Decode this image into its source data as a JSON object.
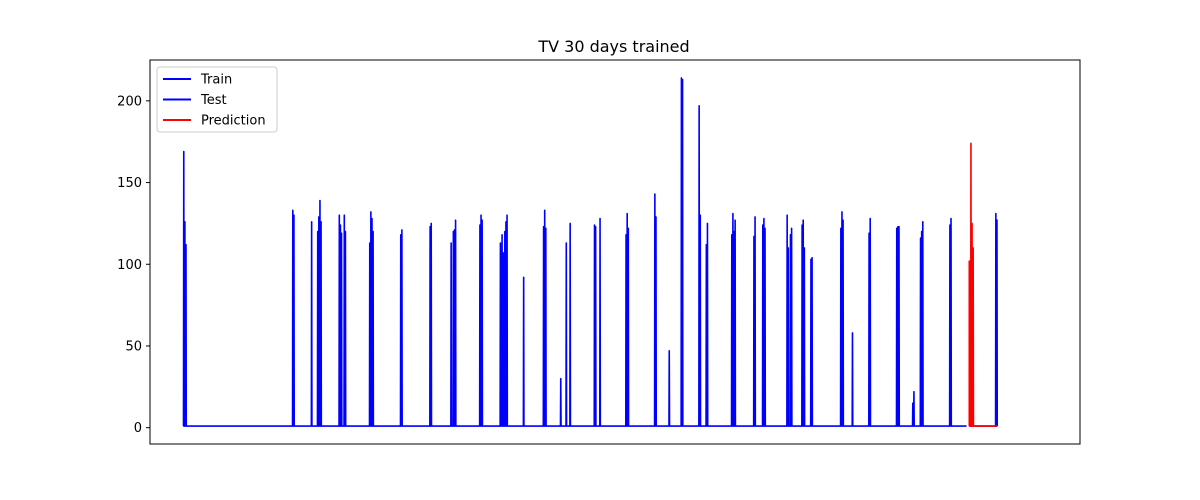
{
  "chart_data": {
    "type": "line",
    "title": "TV 30 days trained",
    "xlabel": "",
    "ylabel": "",
    "ylim": [
      -10,
      225
    ],
    "xlim": [
      -60,
      1620
    ],
    "y_ticks": [
      0,
      50,
      100,
      150,
      200
    ],
    "x_ticks": [],
    "legend_position": "top-left",
    "grid": false,
    "baseline": 1,
    "series": [
      {
        "name": "Train",
        "color": "#0000ff",
        "x_range": [
          0,
          1415
        ],
        "bursts": [
          [
            1,
            169
          ],
          [
            3,
            126
          ],
          [
            5,
            112
          ],
          [
            198,
            133
          ],
          [
            200,
            130
          ],
          [
            232,
            126
          ],
          [
            243,
            120
          ],
          [
            245,
            129
          ],
          [
            247,
            139
          ],
          [
            249,
            126
          ],
          [
            282,
            130
          ],
          [
            284,
            124
          ],
          [
            286,
            119
          ],
          [
            291,
            130
          ],
          [
            293,
            120
          ],
          [
            337,
            113
          ],
          [
            339,
            132
          ],
          [
            341,
            128
          ],
          [
            343,
            120
          ],
          [
            393,
            118
          ],
          [
            395,
            121
          ],
          [
            446,
            123
          ],
          [
            448,
            125
          ],
          [
            484,
            113
          ],
          [
            488,
            120
          ],
          [
            490,
            121
          ],
          [
            492,
            127
          ],
          [
            536,
            124
          ],
          [
            538,
            130
          ],
          [
            540,
            127
          ],
          [
            573,
            113
          ],
          [
            576,
            118
          ],
          [
            578,
            107
          ],
          [
            581,
            120
          ],
          [
            583,
            126
          ],
          [
            585,
            130
          ],
          [
            615,
            92
          ],
          [
            651,
            123
          ],
          [
            653,
            133
          ],
          [
            655,
            122
          ],
          [
            682,
            30
          ],
          [
            692,
            113
          ],
          [
            699,
            125
          ],
          [
            743,
            124
          ],
          [
            745,
            123
          ],
          [
            753,
            128
          ],
          [
            800,
            118
          ],
          [
            802,
            131
          ],
          [
            804,
            122
          ],
          [
            852,
            143
          ],
          [
            854,
            129
          ],
          [
            878,
            47
          ],
          [
            900,
            214
          ],
          [
            902,
            213
          ],
          [
            932,
            197
          ],
          [
            934,
            130
          ],
          [
            945,
            112
          ],
          [
            947,
            125
          ],
          [
            991,
            118
          ],
          [
            993,
            131
          ],
          [
            995,
            120
          ],
          [
            997,
            127
          ],
          [
            1031,
            117
          ],
          [
            1033,
            129
          ],
          [
            1047,
            124
          ],
          [
            1049,
            128
          ],
          [
            1051,
            122
          ],
          [
            1091,
            130
          ],
          [
            1093,
            110
          ],
          [
            1097,
            118
          ],
          [
            1099,
            122
          ],
          [
            1118,
            124
          ],
          [
            1120,
            127
          ],
          [
            1122,
            110
          ],
          [
            1134,
            103
          ],
          [
            1136,
            104
          ],
          [
            1188,
            122
          ],
          [
            1190,
            132
          ],
          [
            1192,
            127
          ],
          [
            1209,
            58
          ],
          [
            1239,
            119
          ],
          [
            1241,
            128
          ],
          [
            1289,
            122
          ],
          [
            1291,
            123
          ],
          [
            1293,
            123
          ],
          [
            1318,
            15
          ],
          [
            1320,
            22
          ],
          [
            1332,
            116
          ],
          [
            1334,
            120
          ],
          [
            1336,
            126
          ],
          [
            1385,
            124
          ],
          [
            1387,
            128
          ]
        ]
      },
      {
        "name": "Test",
        "color": "#0000ff",
        "x_range": [
          1420,
          1470
        ],
        "bursts": [
          [
            1468,
            131
          ],
          [
            1470,
            127
          ]
        ]
      },
      {
        "name": "Prediction",
        "color": "#ff0000",
        "x_range": [
          1420,
          1470
        ],
        "bursts": [
          [
            1420,
            102
          ],
          [
            1423,
            174
          ],
          [
            1425,
            125
          ],
          [
            1427,
            110
          ]
        ]
      }
    ]
  }
}
